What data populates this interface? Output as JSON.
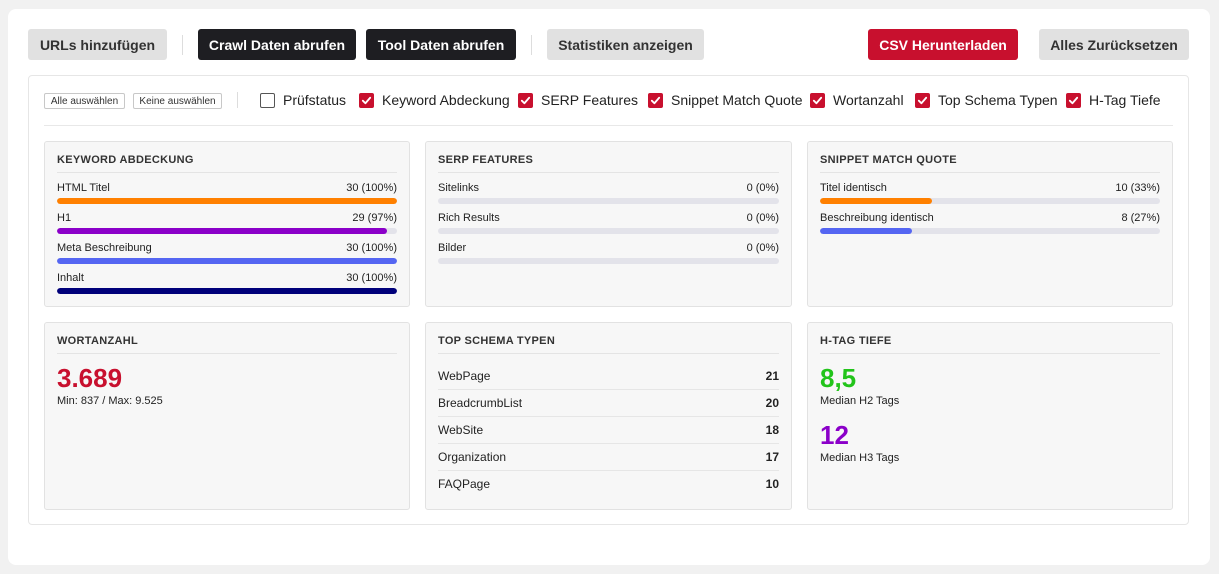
{
  "toolbar": {
    "add_urls": "URLs hinzufügen",
    "crawl": "Crawl Daten abrufen",
    "tool": "Tool Daten abrufen",
    "stats": "Statistiken anzeigen",
    "csv": "CSV Herunterladen",
    "reset": "Alles Zurücksetzen"
  },
  "filters": {
    "select_all": "Alle auswählen",
    "select_none": "Keine auswählen",
    "items": [
      {
        "label": "Prüfstatus",
        "checked": false
      },
      {
        "label": "Keyword Abdeckung",
        "checked": true
      },
      {
        "label": "SERP Features",
        "checked": true
      },
      {
        "label": "Snippet Match Quote",
        "checked": true
      },
      {
        "label": "Wortanzahl",
        "checked": true
      },
      {
        "label": "Top Schema Typen",
        "checked": true
      },
      {
        "label": "H-Tag Tiefe",
        "checked": true
      }
    ]
  },
  "keyword": {
    "title": "KEYWORD ABDECKUNG",
    "metrics": [
      {
        "label": "HTML Titel",
        "value": "30 (100%)",
        "fraction": 1.0,
        "color": "#ff8000"
      },
      {
        "label": "H1",
        "value": "29 (97%)",
        "fraction": 0.97,
        "color": "#8b00c9"
      },
      {
        "label": "Meta Beschreibung",
        "value": "30 (100%)",
        "fraction": 1.0,
        "color": "#5566f2"
      },
      {
        "label": "Inhalt",
        "value": "30 (100%)",
        "fraction": 1.0,
        "color": "#00007a"
      }
    ]
  },
  "serp": {
    "title": "SERP FEATURES",
    "metrics": [
      {
        "label": "Sitelinks",
        "value": "0 (0%)",
        "fraction": 0,
        "color": "#5566f2"
      },
      {
        "label": "Rich Results",
        "value": "0 (0%)",
        "fraction": 0,
        "color": "#5566f2"
      },
      {
        "label": "Bilder",
        "value": "0 (0%)",
        "fraction": 0,
        "color": "#5566f2"
      }
    ]
  },
  "snippet": {
    "title": "SNIPPET MATCH QUOTE",
    "metrics": [
      {
        "label": "Titel identisch",
        "value": "10 (33%)",
        "fraction": 0.33,
        "color": "#ff8000"
      },
      {
        "label": "Beschreibung identisch",
        "value": "8 (27%)",
        "fraction": 0.27,
        "color": "#5566f2"
      }
    ]
  },
  "words": {
    "title": "WORTANZAHL",
    "value": "3.689",
    "range": "Min: 837 / Max: 9.525",
    "color": "#c8102e"
  },
  "schema": {
    "title": "TOP SCHEMA TYPEN",
    "rows": [
      {
        "label": "WebPage",
        "value": "21"
      },
      {
        "label": "BreadcrumbList",
        "value": "20"
      },
      {
        "label": "WebSite",
        "value": "18"
      },
      {
        "label": "Organization",
        "value": "17"
      },
      {
        "label": "FAQPage",
        "value": "10"
      }
    ]
  },
  "htag": {
    "title": "H-TAG TIEFE",
    "h2_value": "8,5",
    "h2_label": "Median H2 Tags",
    "h2_color": "#22c41a",
    "h3_value": "12",
    "h3_label": "Median H3 Tags",
    "h3_color": "#8b00c9"
  }
}
